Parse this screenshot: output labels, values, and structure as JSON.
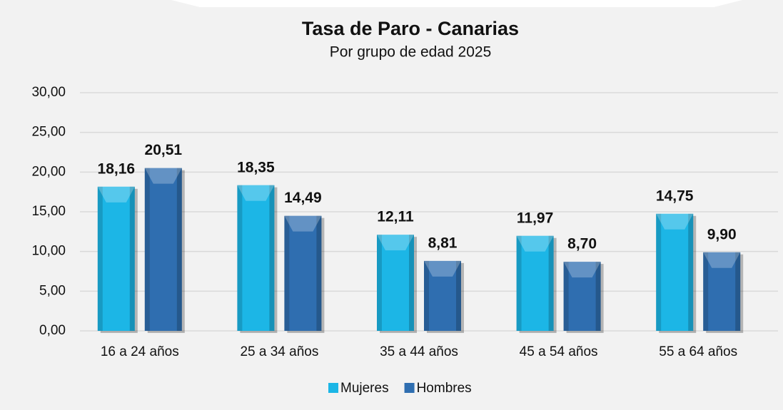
{
  "chart_data": {
    "type": "bar",
    "title": "Tasa de Paro - Canarias",
    "subtitle": "Por grupo de edad 2025",
    "categories": [
      "16 a 24 años",
      "25 a 34 años",
      "35 a 44 años",
      "45 a 54 años",
      "55 a 64 años"
    ],
    "series": [
      {
        "name": "Mujeres",
        "color": "#1cb6e6",
        "values": [
          18.16,
          18.35,
          12.11,
          11.97,
          14.75
        ],
        "value_labels": [
          "18,16",
          "18,35",
          "12,11",
          "11,97",
          "14,75"
        ]
      },
      {
        "name": "Hombres",
        "color": "#2f6eb0",
        "values": [
          20.51,
          14.49,
          8.81,
          8.7,
          9.9
        ],
        "value_labels": [
          "20,51",
          "14,49",
          "8,81",
          "8,70",
          "9,90"
        ]
      }
    ],
    "ylim": [
      0,
      30
    ],
    "yticks": [
      {
        "value": 0,
        "label": "0,00"
      },
      {
        "value": 5,
        "label": "5,00"
      },
      {
        "value": 10,
        "label": "10,00"
      },
      {
        "value": 15,
        "label": "15,00"
      },
      {
        "value": 20,
        "label": "20,00"
      },
      {
        "value": 25,
        "label": "25,00"
      },
      {
        "value": 30,
        "label": "30,00"
      }
    ],
    "grid": true,
    "legend": "bottom"
  }
}
